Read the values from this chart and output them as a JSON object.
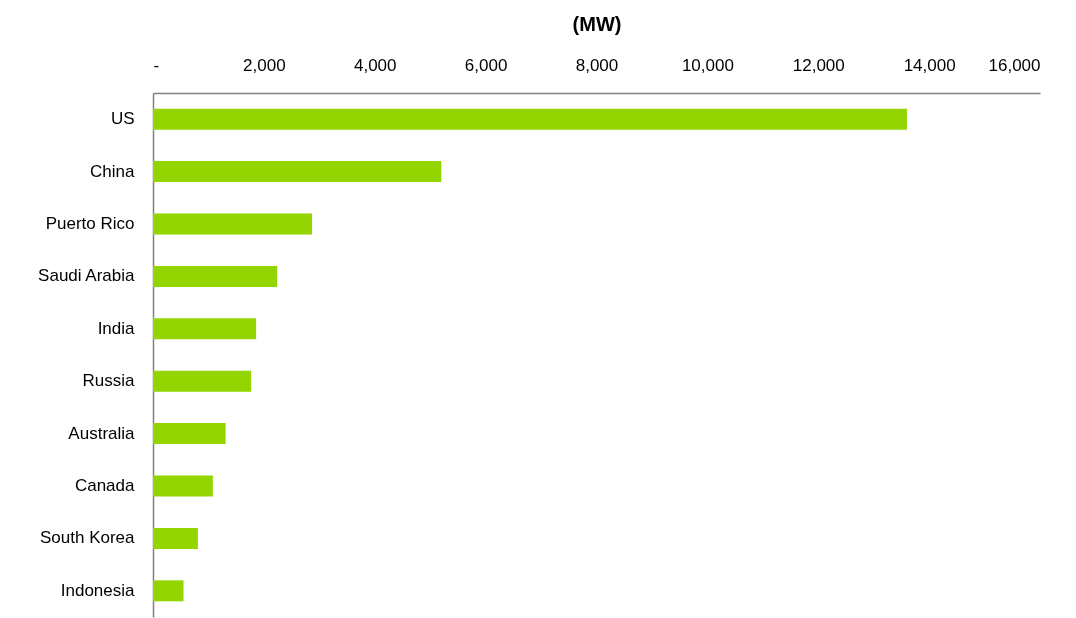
{
  "chart_data": {
    "type": "bar",
    "orientation": "horizontal",
    "xlabel": "(MW)",
    "categories": [
      "US",
      "China",
      "Puerto Rico",
      "Saudi Arabia",
      "India",
      "Russia",
      "Australia",
      "Canada",
      "South Korea",
      "Indonesia"
    ],
    "values": [
      13600,
      5200,
      2870,
      2240,
      1860,
      1770,
      1310,
      1080,
      810,
      550
    ],
    "color": "#93d500",
    "xlim": [
      0,
      16000
    ],
    "xticks": [
      {
        "value": 0,
        "label": "-"
      },
      {
        "value": 2000,
        "label": "2,000"
      },
      {
        "value": 4000,
        "label": "4,000"
      },
      {
        "value": 6000,
        "label": "6,000"
      },
      {
        "value": 8000,
        "label": "8,000"
      },
      {
        "value": 10000,
        "label": "10,000"
      },
      {
        "value": 12000,
        "label": "12,000"
      },
      {
        "value": 14000,
        "label": "14,000"
      },
      {
        "value": 16000,
        "label": "16,000"
      }
    ]
  }
}
